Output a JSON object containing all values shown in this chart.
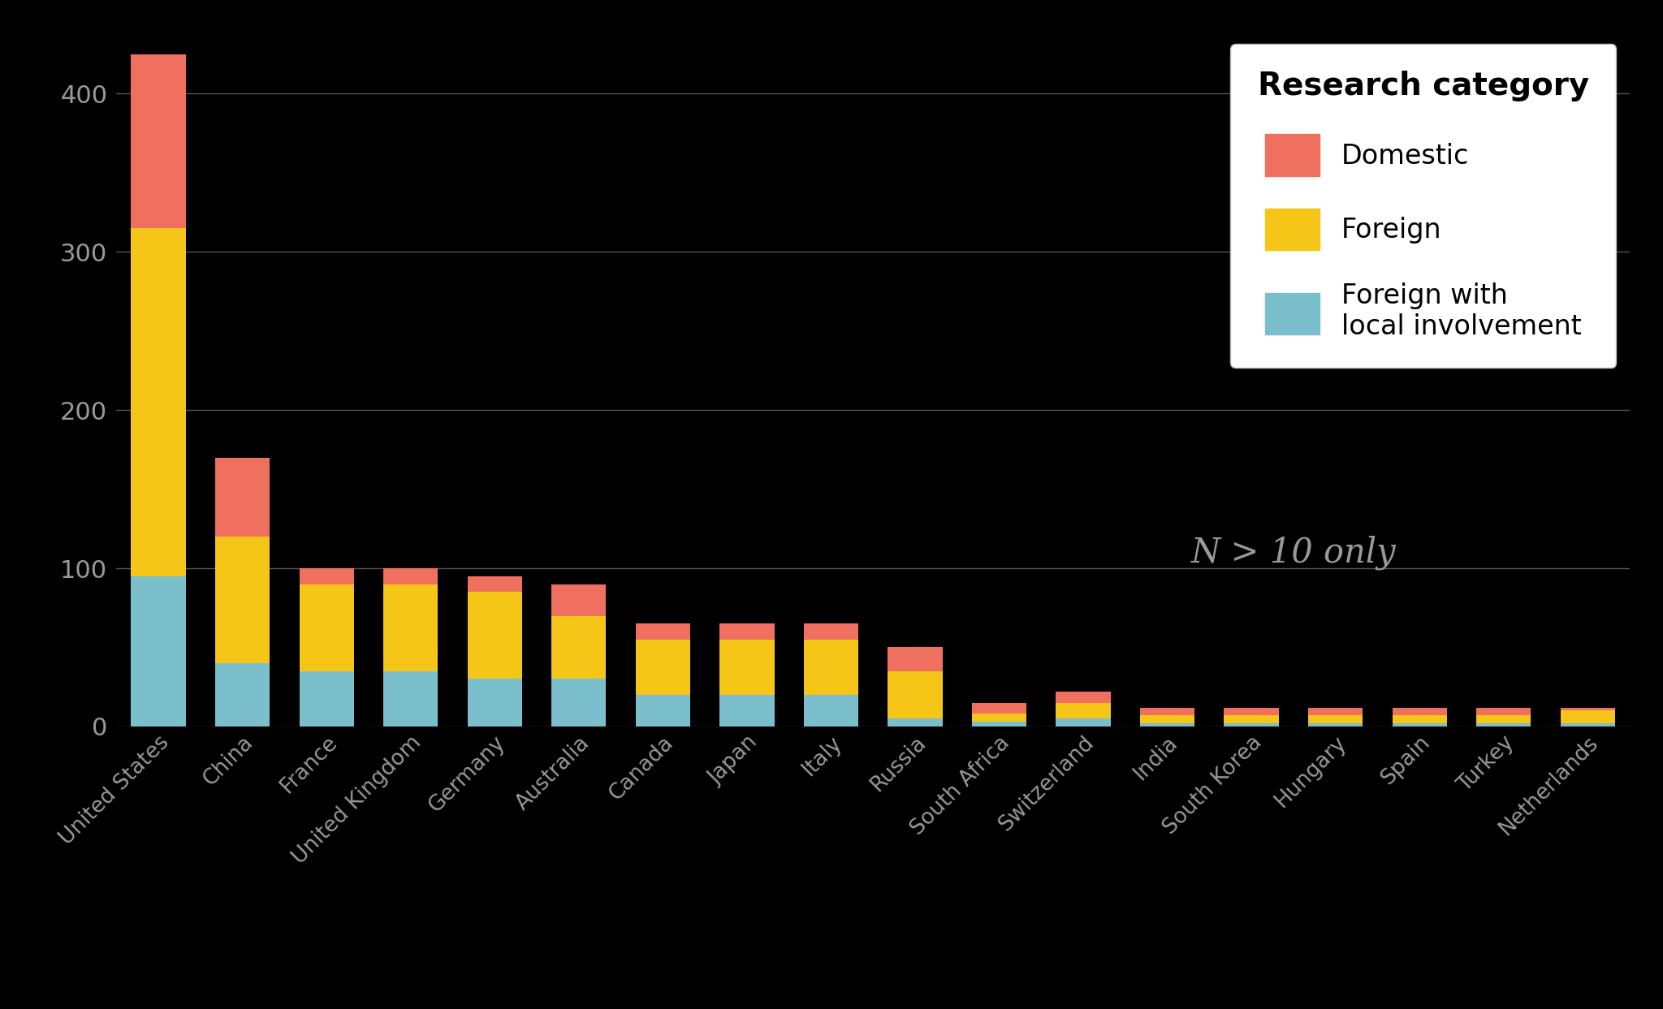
{
  "categories": [
    "United States",
    "China",
    "France",
    "United Kingdom",
    "Germany",
    "Australia",
    "Canada",
    "Japan",
    "Italy",
    "Russia",
    "South Africa",
    "Switzerland",
    "India",
    "South Korea",
    "Hungary",
    "Spain",
    "Turkey",
    "Netherlands"
  ],
  "foreign_with_local": [
    95,
    40,
    35,
    35,
    30,
    30,
    20,
    20,
    20,
    5,
    3,
    5,
    2,
    2,
    2,
    2,
    2,
    2
  ],
  "foreign": [
    220,
    80,
    55,
    55,
    55,
    40,
    35,
    35,
    35,
    30,
    5,
    10,
    5,
    5,
    5,
    5,
    5,
    8
  ],
  "domestic": [
    110,
    50,
    10,
    10,
    10,
    20,
    10,
    10,
    10,
    15,
    7,
    7,
    5,
    5,
    5,
    5,
    5,
    2
  ],
  "color_domestic": "#f07060",
  "color_foreign": "#f5c518",
  "color_foreign_local": "#7bbfcc",
  "background_color": "#000000",
  "text_color": "#999999",
  "legend_title": "Research category",
  "legend_entries": [
    "Domestic",
    "Foreign",
    "Foreign with\nlocal involvement"
  ],
  "annotation": "N > 10 only",
  "ylim": [
    0,
    440
  ],
  "yticks": [
    0,
    100,
    200,
    300,
    400
  ],
  "grid_color": "#555555"
}
